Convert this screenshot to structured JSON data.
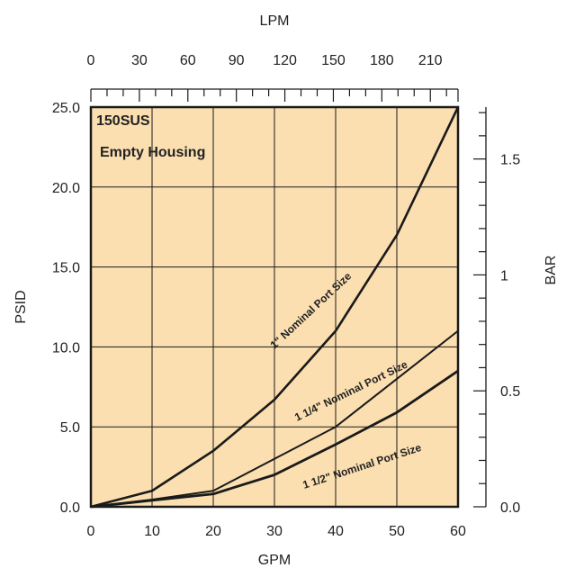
{
  "chart_data": {
    "type": "line",
    "title": "150SUS",
    "subtitle": "Empty Housing",
    "xlabel": "GPM",
    "ylabel": "PSID",
    "x2label": "LPM",
    "y2label": "BAR",
    "xlim": [
      0,
      60
    ],
    "ylim": [
      0,
      25
    ],
    "x_ticks": [
      0,
      10,
      20,
      30,
      40,
      50,
      60
    ],
    "y_ticks": [
      "0.0",
      "5.0",
      "10.0",
      "15.0",
      "20.0",
      "25.0"
    ],
    "x2_ticks": [
      0,
      30,
      60,
      90,
      120,
      150,
      180,
      210
    ],
    "y2_ticks": [
      {
        "label": "0.0",
        "bar": 0
      },
      {
        "label": "0.5",
        "bar": 0.5
      },
      {
        "label": "1",
        "bar": 1
      },
      {
        "label": "1.5",
        "bar": 1.5
      }
    ],
    "grid": true,
    "colors": {
      "plot_background": "#fbdfb1",
      "line": "#1a1a1a"
    },
    "series": [
      {
        "name": "1\" Nominal Port Size",
        "x": [
          0,
          10,
          20,
          30,
          40,
          50,
          60
        ],
        "y": [
          0,
          1.0,
          3.5,
          6.7,
          11.0,
          17.0,
          25.0
        ]
      },
      {
        "name": "1 1/4\" Nominal Port Size",
        "x": [
          0,
          10,
          20,
          30,
          40,
          50,
          60
        ],
        "y": [
          0,
          0.45,
          1.0,
          3.0,
          5.0,
          8.0,
          11.0
        ]
      },
      {
        "name": "1 1/2\" Nominal Port Size",
        "x": [
          0,
          10,
          20,
          30,
          40,
          50,
          60
        ],
        "y": [
          0,
          0.4,
          0.8,
          2.0,
          3.9,
          5.9,
          8.5
        ]
      }
    ]
  }
}
